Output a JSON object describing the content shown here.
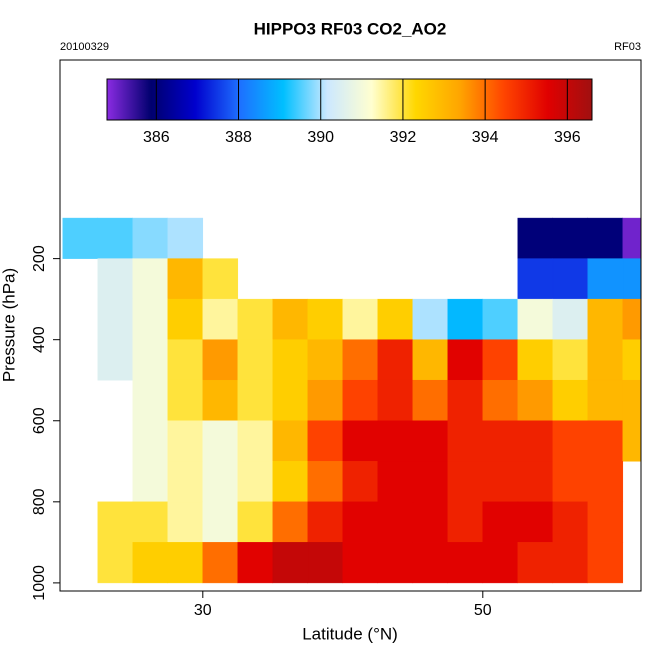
{
  "chart_data": {
    "type": "heatmap",
    "title": "HIPPO3 RF03 CO2_AO2",
    "subtitle_left": "20100329",
    "subtitle_right": "RF03",
    "x_label": "Latitude (°N)",
    "y_label": "Pressure (hPa)",
    "x_edges": [
      20,
      22.5,
      25,
      27.5,
      30,
      32.5,
      35,
      37.5,
      40,
      42.5,
      45,
      47.5,
      50,
      52.5,
      55,
      57.5,
      60,
      62.5
    ],
    "y_edges": [
      100,
      200,
      300,
      400,
      500,
      600,
      700,
      800,
      900,
      1000
    ],
    "values": [
      [
        389.5,
        389.5,
        389.8,
        390,
        null,
        null,
        null,
        null,
        null,
        null,
        null,
        null,
        null,
        386,
        386,
        386,
        385
      ],
      [
        null,
        390.5,
        391,
        393,
        392,
        null,
        null,
        null,
        null,
        null,
        null,
        null,
        null,
        387.5,
        387.5,
        388.5,
        388.5
      ],
      [
        null,
        390.5,
        391,
        392.5,
        391.5,
        392,
        393,
        392.5,
        391.5,
        392.5,
        390,
        389,
        389.5,
        391,
        390.5,
        393,
        393.5
      ],
      [
        null,
        390.5,
        391,
        392,
        393.5,
        392,
        392.5,
        393,
        394,
        395,
        393,
        395.5,
        394.5,
        392.5,
        392,
        393,
        392.5
      ],
      [
        null,
        null,
        391,
        392,
        393,
        392,
        392.5,
        393.5,
        394.5,
        395,
        394,
        395,
        394,
        393.5,
        392.5,
        393,
        393
      ],
      [
        null,
        null,
        391,
        391.5,
        391,
        391.5,
        393,
        394.5,
        395.5,
        395.5,
        395.5,
        395,
        395,
        395,
        394.5,
        394.5,
        393
      ],
      [
        null,
        null,
        391,
        391.5,
        391,
        391.5,
        392.5,
        394,
        395,
        395.5,
        395.5,
        395,
        395,
        395,
        394.5,
        394.5,
        null
      ],
      [
        null,
        392,
        392,
        391.5,
        391,
        392,
        394,
        395,
        395.5,
        395.5,
        395.5,
        395,
        395.5,
        395.5,
        395,
        394.5,
        null
      ],
      [
        null,
        392,
        392.5,
        392.5,
        394,
        395.5,
        396,
        396,
        395.5,
        395.5,
        395.5,
        395.5,
        395.5,
        395,
        395,
        394.5,
        null
      ]
    ],
    "xlim": [
      19.8,
      61.3
    ],
    "ylim": [
      1020,
      -290
    ],
    "xticks": [
      30,
      50
    ],
    "yticks": [
      200,
      400,
      600,
      800,
      1000
    ],
    "colorbar": {
      "lim": [
        384.8,
        396.6
      ],
      "ticks": [
        386,
        388,
        390,
        392,
        394,
        396
      ],
      "colors": [
        "#8a2be2",
        "#00006e",
        "#0000cd",
        "#1e6fff",
        "#00bfff",
        "#cce8ff",
        "#ffffd0",
        "#ffd700",
        "#ffa500",
        "#ff4500",
        "#e00000",
        "#a01010"
      ]
    }
  }
}
